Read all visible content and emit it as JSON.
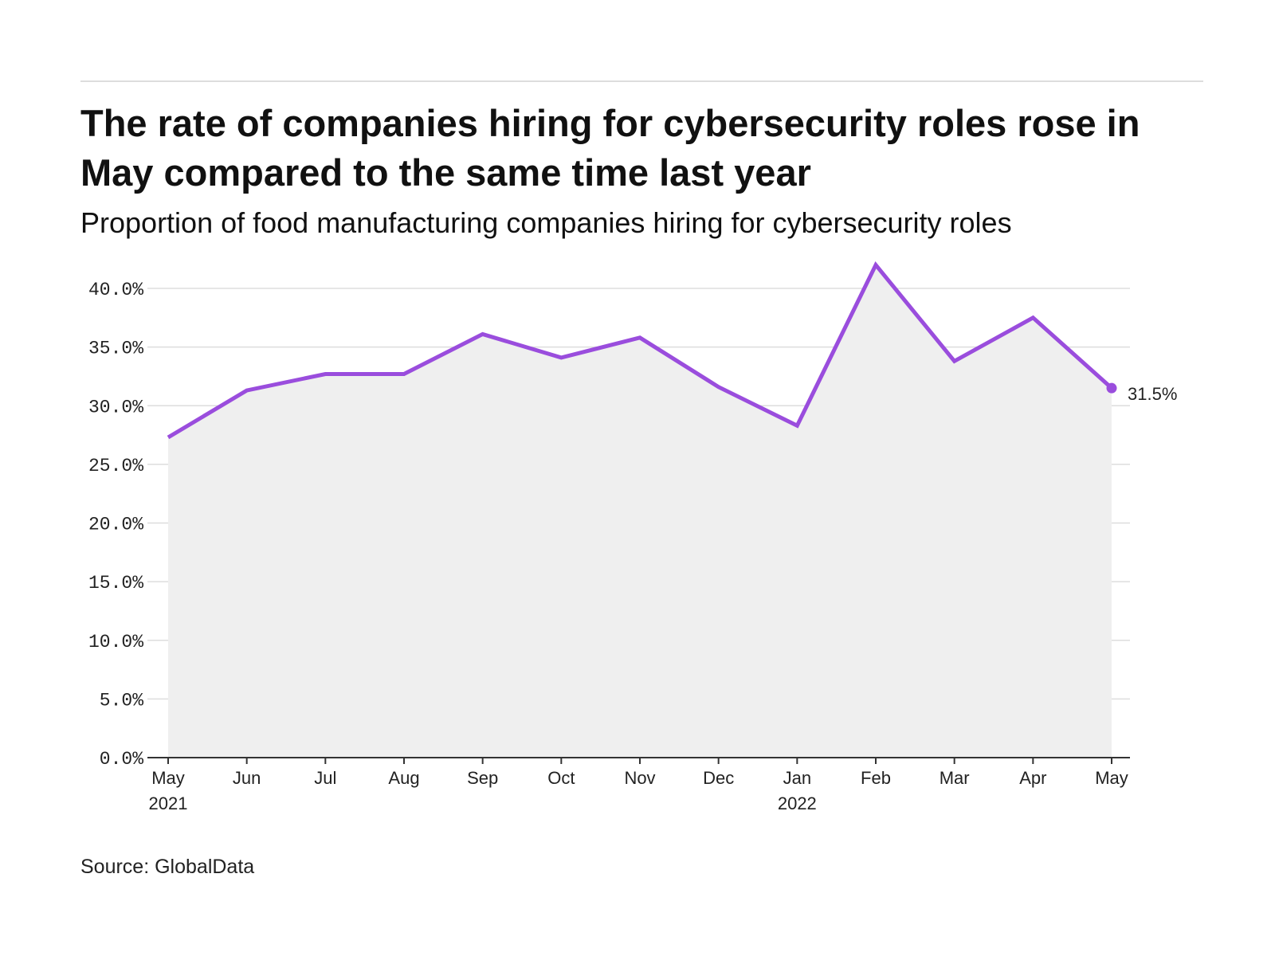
{
  "title": "The rate of companies hiring for cybersecurity roles rose in May compared to the same time last year",
  "subtitle": "Proportion of food manufacturing companies hiring for cybersecurity roles",
  "source": "Source: GlobalData",
  "colors": {
    "line": "#9a4ddd",
    "area": "#efefef",
    "grid": "#dddddd",
    "axis": "#333333"
  },
  "chart_data": {
    "type": "area",
    "x": [
      "May 2021",
      "Jun",
      "Jul",
      "Aug",
      "Sep",
      "Oct",
      "Nov",
      "Dec",
      "Jan 2022",
      "Feb",
      "Mar",
      "Apr",
      "May"
    ],
    "x_tick_labels": [
      [
        "May",
        "2021"
      ],
      [
        "Jun"
      ],
      [
        "Jul"
      ],
      [
        "Aug"
      ],
      [
        "Sep"
      ],
      [
        "Oct"
      ],
      [
        "Nov"
      ],
      [
        "Dec"
      ],
      [
        "Jan",
        "2022"
      ],
      [
        "Feb"
      ],
      [
        "Mar"
      ],
      [
        "Apr"
      ],
      [
        "May"
      ]
    ],
    "series": [
      {
        "values": [
          27.3,
          31.3,
          32.7,
          32.7,
          36.1,
          34.1,
          35.8,
          31.6,
          28.3,
          42.0,
          33.8,
          37.5,
          31.5
        ]
      }
    ],
    "ylim": [
      0,
      40
    ],
    "yticks": [
      0,
      5,
      10,
      15,
      20,
      25,
      30,
      35,
      40
    ],
    "ytick_labels": [
      "0.0%",
      "5.0%",
      "10.0%",
      "15.0%",
      "20.0%",
      "25.0%",
      "30.0%",
      "35.0%",
      "40.0%"
    ],
    "end_label": "31.5%",
    "grid": true,
    "legend": "none"
  }
}
